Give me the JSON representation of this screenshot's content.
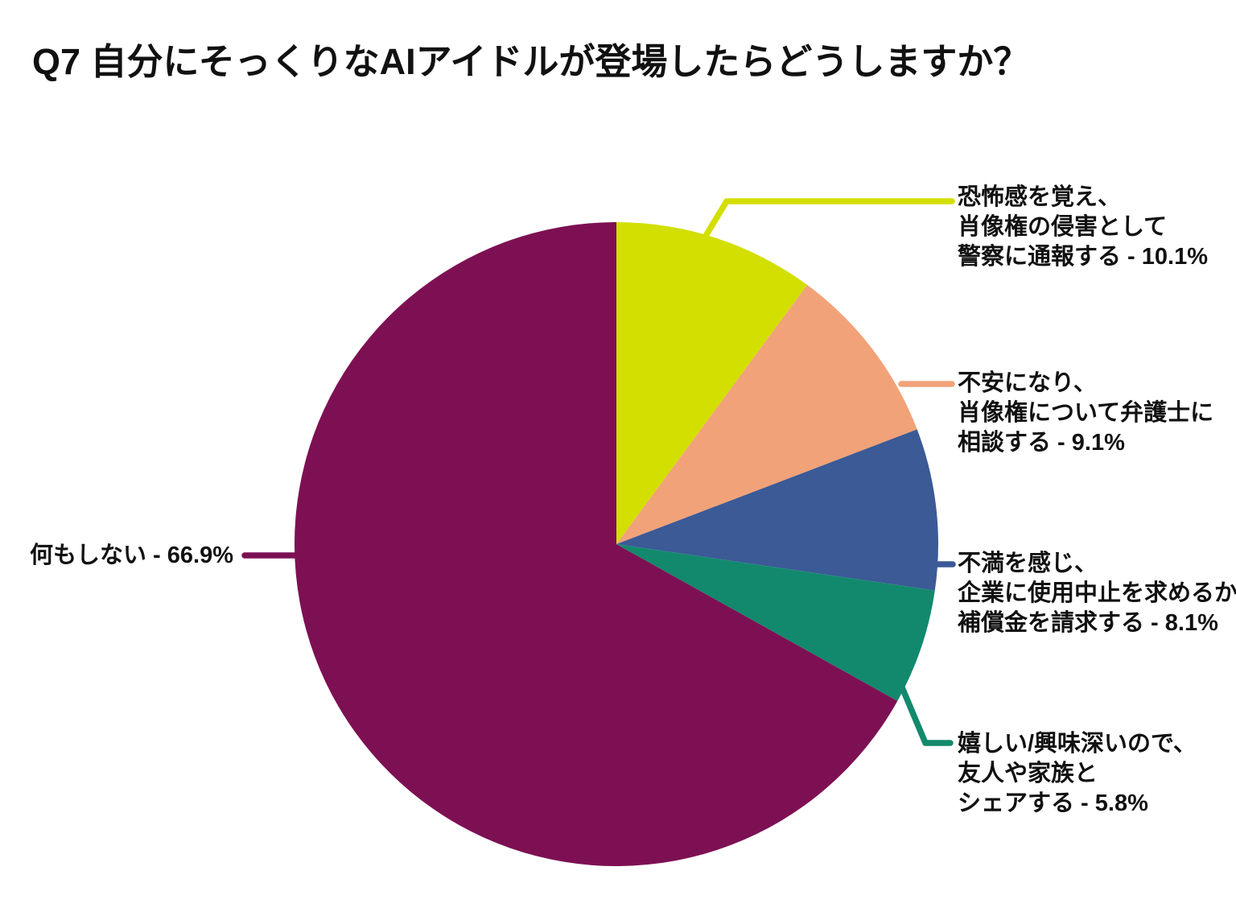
{
  "title": "Q7 自分にそっくりなAIアイドルが登場したらどうしますか？",
  "colors": {
    "background": "#ffffff",
    "text": "#111111"
  },
  "chart_data": {
    "type": "pie",
    "title": "Q7 自分にそっくりなAIアイドルが登場したらどうしますか？",
    "start_angle_deg": 0,
    "direction": "clockwise",
    "total_pct": 100,
    "slices": [
      {
        "name": "恐怖感を覚え、肖像権の侵害として警察に通報する",
        "value_pct": 10.1,
        "color": "#d3df00",
        "label_lines": [
          "恐怖感を覚え、",
          "肖像権の侵害として",
          "警察に通報する - 10.1%"
        ]
      },
      {
        "name": "不安になり、肖像権について弁護士に相談する",
        "value_pct": 9.1,
        "color": "#f2a278",
        "label_lines": [
          "不安になり、",
          "肖像権について弁護士に",
          "相談する - 9.1%"
        ]
      },
      {
        "name": "不満を感じ、企業に使用中止を求めるか補償金を請求する",
        "value_pct": 8.1,
        "color": "#3b5a96",
        "label_lines": [
          "不満を感じ、",
          "企業に使用中止を求めるか",
          "補償金を請求する - 8.1%"
        ]
      },
      {
        "name": "嬉しい/興味深いので、友人や家族とシェアする",
        "value_pct": 5.8,
        "color": "#12896d",
        "label_lines": [
          "嬉しい/興味深いので、",
          "友人や家族と",
          "シェアする - 5.8%"
        ]
      },
      {
        "name": "何もしない",
        "value_pct": 66.9,
        "color": "#7d1053",
        "label_lines": [
          "何もしない - 66.9%"
        ]
      }
    ]
  }
}
